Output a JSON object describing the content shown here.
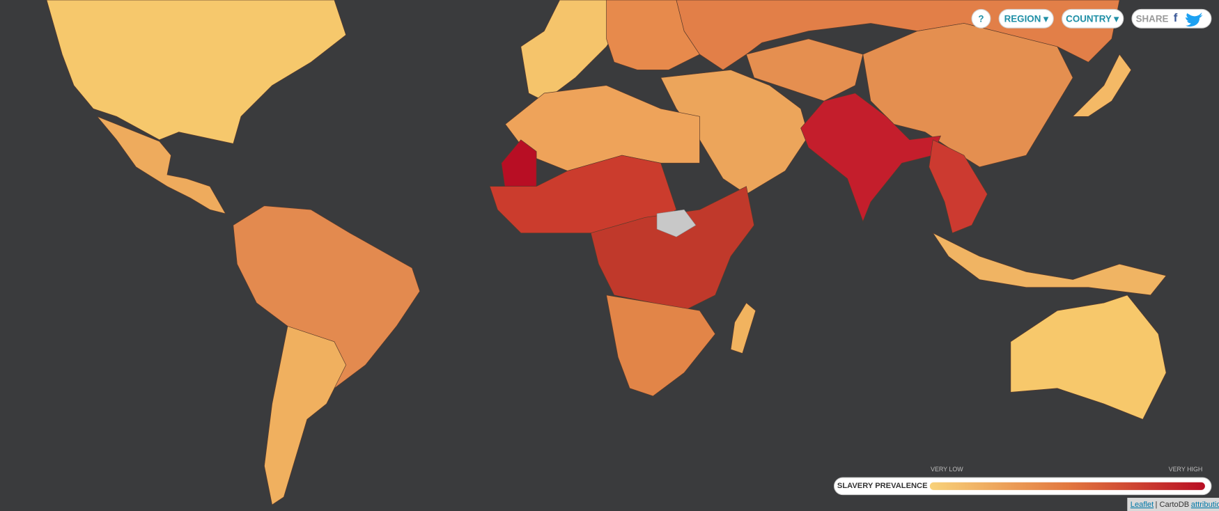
{
  "controls": {
    "help": "?",
    "region": "REGION ▾",
    "country": "COUNTRY ▾",
    "share": "SHARE",
    "facebook": "f"
  },
  "legend": {
    "title": "SLAVERY PREVALENCE",
    "low": "VERY LOW",
    "high": "VERY HIGH"
  },
  "attribution": {
    "leaflet": "Leaflet",
    "cartodb": "| CartoDB",
    "link": "attribution"
  }
}
